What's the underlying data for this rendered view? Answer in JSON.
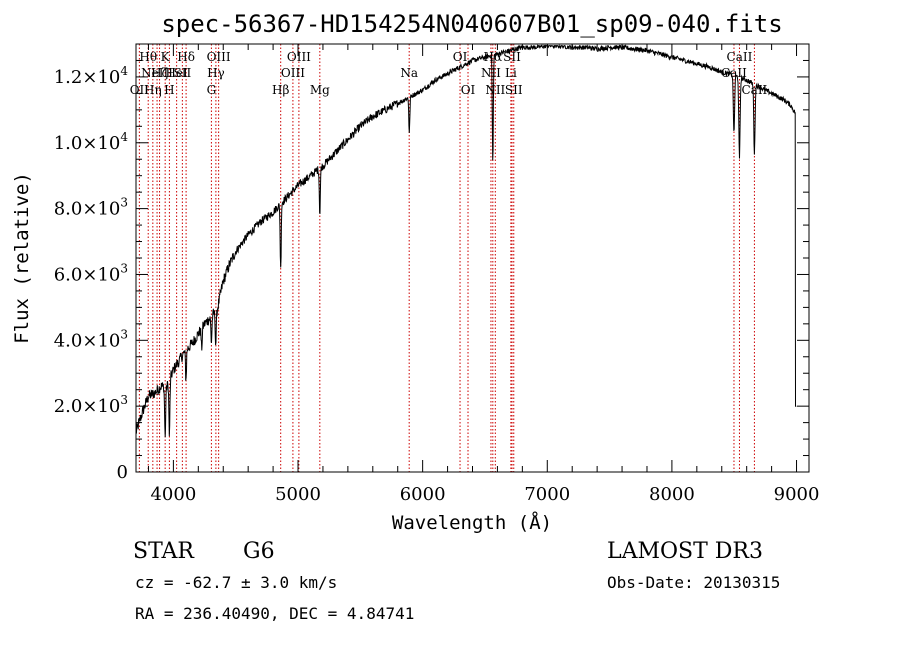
{
  "chart_data": {
    "type": "line",
    "title": "spec-56367-HD154254N040607B01_sp09-040.fits",
    "xlabel": "Wavelength (Å)",
    "ylabel": "Flux (relative)",
    "xlim": [
      3700,
      9100
    ],
    "ylim": [
      0,
      13000
    ],
    "x_ticks": [
      {
        "value": 4000,
        "label": "4000"
      },
      {
        "value": 5000,
        "label": "5000"
      },
      {
        "value": 6000,
        "label": "6000"
      },
      {
        "value": 7000,
        "label": "7000"
      },
      {
        "value": 8000,
        "label": "8000"
      },
      {
        "value": 9000,
        "label": "9000"
      }
    ],
    "y_ticks": [
      {
        "value": 0,
        "label": "0",
        "mant": "0",
        "exp": ""
      },
      {
        "value": 2000,
        "label": "2.0×10³",
        "mant": "2.0×10",
        "exp": "3"
      },
      {
        "value": 4000,
        "label": "4.0×10³",
        "mant": "4.0×10",
        "exp": "3"
      },
      {
        "value": 6000,
        "label": "6.0×10³",
        "mant": "6.0×10",
        "exp": "3"
      },
      {
        "value": 8000,
        "label": "8.0×10³",
        "mant": "8.0×10",
        "exp": "3"
      },
      {
        "value": 10000,
        "label": "1.0×10⁴",
        "mant": "1.0×10",
        "exp": "4"
      },
      {
        "value": 12000,
        "label": "1.2×10⁴",
        "mant": "1.2×10",
        "exp": "4"
      }
    ],
    "continuum_points": [
      [
        3700,
        1200
      ],
      [
        3750,
        1800
      ],
      [
        3800,
        2300
      ],
      [
        3850,
        2400
      ],
      [
        3900,
        2600
      ],
      [
        3950,
        2600
      ],
      [
        4000,
        3100
      ],
      [
        4050,
        3400
      ],
      [
        4100,
        3700
      ],
      [
        4150,
        3900
      ],
      [
        4200,
        4200
      ],
      [
        4250,
        4500
      ],
      [
        4300,
        4700
      ],
      [
        4350,
        4900
      ],
      [
        4400,
        5800
      ],
      [
        4450,
        6300
      ],
      [
        4500,
        6700
      ],
      [
        4600,
        7200
      ],
      [
        4700,
        7600
      ],
      [
        4800,
        7900
      ],
      [
        4900,
        8300
      ],
      [
        5000,
        8700
      ],
      [
        5100,
        9000
      ],
      [
        5200,
        9300
      ],
      [
        5300,
        9700
      ],
      [
        5400,
        10100
      ],
      [
        5500,
        10500
      ],
      [
        5600,
        10800
      ],
      [
        5700,
        11000
      ],
      [
        5800,
        11200
      ],
      [
        5900,
        11400
      ],
      [
        6000,
        11600
      ],
      [
        6100,
        11900
      ],
      [
        6200,
        12100
      ],
      [
        6300,
        12300
      ],
      [
        6400,
        12500
      ],
      [
        6500,
        12600
      ],
      [
        6600,
        12700
      ],
      [
        6700,
        12800
      ],
      [
        6800,
        12900
      ],
      [
        6900,
        12900
      ],
      [
        7000,
        12950
      ],
      [
        7100,
        12950
      ],
      [
        7200,
        12900
      ],
      [
        7300,
        12900
      ],
      [
        7400,
        12850
      ],
      [
        7500,
        12900
      ],
      [
        7600,
        12900
      ],
      [
        7700,
        12850
      ],
      [
        7800,
        12800
      ],
      [
        7900,
        12700
      ],
      [
        8000,
        12600
      ],
      [
        8100,
        12500
      ],
      [
        8200,
        12400
      ],
      [
        8300,
        12300
      ],
      [
        8400,
        12150
      ],
      [
        8500,
        12050
      ],
      [
        8600,
        11900
      ],
      [
        8700,
        11700
      ],
      [
        8800,
        11500
      ],
      [
        8900,
        11300
      ],
      [
        8950,
        11150
      ],
      [
        8990,
        10900
      ],
      [
        9000,
        2000
      ]
    ],
    "absorption_features": [
      {
        "x": 3934,
        "depth": 1600
      },
      {
        "x": 3968,
        "depth": 1700
      },
      {
        "x": 4101,
        "depth": 900
      },
      {
        "x": 4227,
        "depth": 600
      },
      {
        "x": 4305,
        "depth": 800
      },
      {
        "x": 4340,
        "depth": 1000
      },
      {
        "x": 4861,
        "depth": 2000
      },
      {
        "x": 5175,
        "depth": 1400
      },
      {
        "x": 5893,
        "depth": 1100
      },
      {
        "x": 6563,
        "depth": 3300
      },
      {
        "x": 8498,
        "depth": 1800
      },
      {
        "x": 8542,
        "depth": 2500
      },
      {
        "x": 8662,
        "depth": 2100
      }
    ],
    "line_markers": [
      {
        "x": 3727,
        "label": "OII",
        "row": 2
      },
      {
        "x": 3798,
        "label": "Hθ",
        "row": 0
      },
      {
        "x": 3835,
        "label": "Hη",
        "row": 2
      },
      {
        "x": 3869,
        "label": "NeIII",
        "row": 1
      },
      {
        "x": 3889,
        "label": "Hζ",
        "row": 1
      },
      {
        "x": 3934,
        "label": "K",
        "row": 0
      },
      {
        "x": 3968,
        "label": "H",
        "row": 2
      },
      {
        "x": 4026,
        "label": "HeI",
        "row": 1
      },
      {
        "x": 4072,
        "label": "SII",
        "row": 1
      },
      {
        "x": 4102,
        "label": "Hδ",
        "row": 0
      },
      {
        "x": 4305,
        "label": "G",
        "row": 2
      },
      {
        "x": 4341,
        "label": "Hγ",
        "row": 1
      },
      {
        "x": 4363,
        "label": "OIII",
        "row": 0
      },
      {
        "x": 4861,
        "label": "Hβ",
        "row": 2
      },
      {
        "x": 4959,
        "label": "OIII",
        "row": 1
      },
      {
        "x": 5007,
        "label": "OIII",
        "row": 0
      },
      {
        "x": 5175,
        "label": "Mg",
        "row": 2
      },
      {
        "x": 5892,
        "label": "Na",
        "row": 1
      },
      {
        "x": 6300,
        "label": "OI",
        "row": 0
      },
      {
        "x": 6364,
        "label": "OI",
        "row": 2
      },
      {
        "x": 6548,
        "label": "NII",
        "row": 1
      },
      {
        "x": 6563,
        "label": "Hα",
        "row": 0
      },
      {
        "x": 6583,
        "label": "NII",
        "row": 2
      },
      {
        "x": 6708,
        "label": "Li",
        "row": 1
      },
      {
        "x": 6717,
        "label": "SII",
        "row": 0
      },
      {
        "x": 6731,
        "label": "SII",
        "row": 2
      },
      {
        "x": 8498,
        "label": "CaII",
        "row": 1
      },
      {
        "x": 8542,
        "label": "CaII",
        "row": 0
      },
      {
        "x": 8662,
        "label": "CaII",
        "row": 2
      }
    ]
  },
  "info": {
    "object_type": "STAR",
    "subclass": "G6",
    "survey": "LAMOST DR3",
    "redshift_text": "cz = -62.7 ± 3.0 km/s",
    "obs_date": "Obs-Date: 20130315",
    "coords": "RA = 236.40490, DEC =   4.84741"
  },
  "colors": {
    "spectrum": "#000000",
    "marker": "#cc0000",
    "axes": "#000000",
    "background": "#ffffff"
  }
}
